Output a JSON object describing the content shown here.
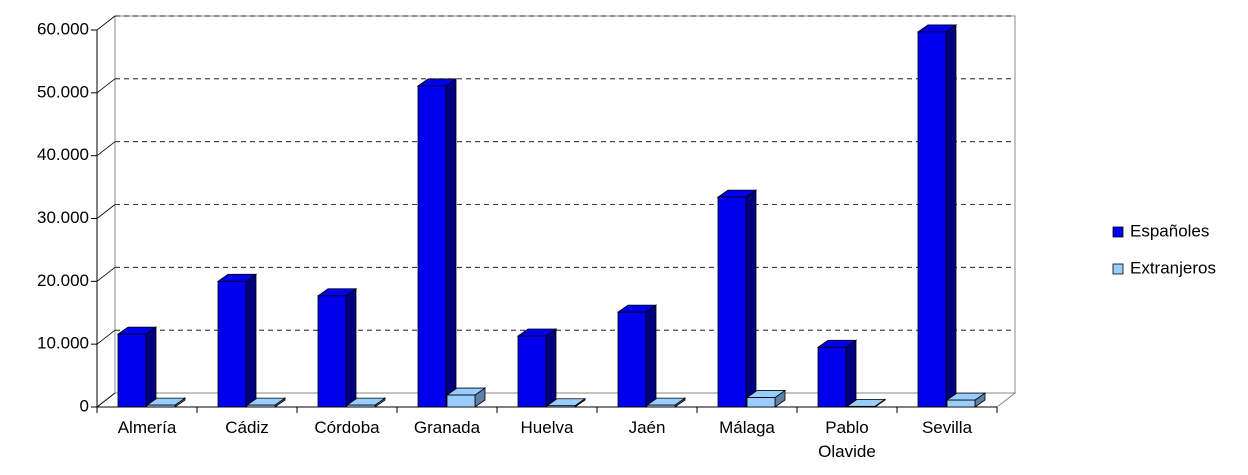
{
  "chart_data": {
    "type": "bar3d",
    "categories": [
      "Almería",
      "Cádiz",
      "Córdoba",
      "Granada",
      "Huelva",
      "Jaén",
      "Málaga",
      "Pablo Olavide",
      "Sevilla"
    ],
    "series": [
      {
        "name": "Españoles",
        "color": "#0000ee",
        "side_color": "#000080",
        "values": [
          11600,
          20000,
          17700,
          51100,
          11300,
          15100,
          33400,
          9500,
          59700
        ]
      },
      {
        "name": "Extranjeros",
        "color": "#99ccff",
        "side_color": "#5f7fa8",
        "values": [
          300,
          300,
          300,
          1900,
          200,
          300,
          1500,
          100,
          1100
        ]
      }
    ],
    "ylim": [
      0,
      60000
    ],
    "yticks": [
      0,
      {
        "value": 10000,
        "label": "10.000"
      },
      {
        "value": 20000,
        "label": "20.000"
      },
      {
        "value": 30000,
        "label": "30.000"
      },
      {
        "value": 40000,
        "label": "40.000"
      },
      {
        "value": 50000,
        "label": "50.000"
      },
      {
        "value": 60000,
        "label": "60.000"
      }
    ],
    "grid": true,
    "legend": "right"
  }
}
